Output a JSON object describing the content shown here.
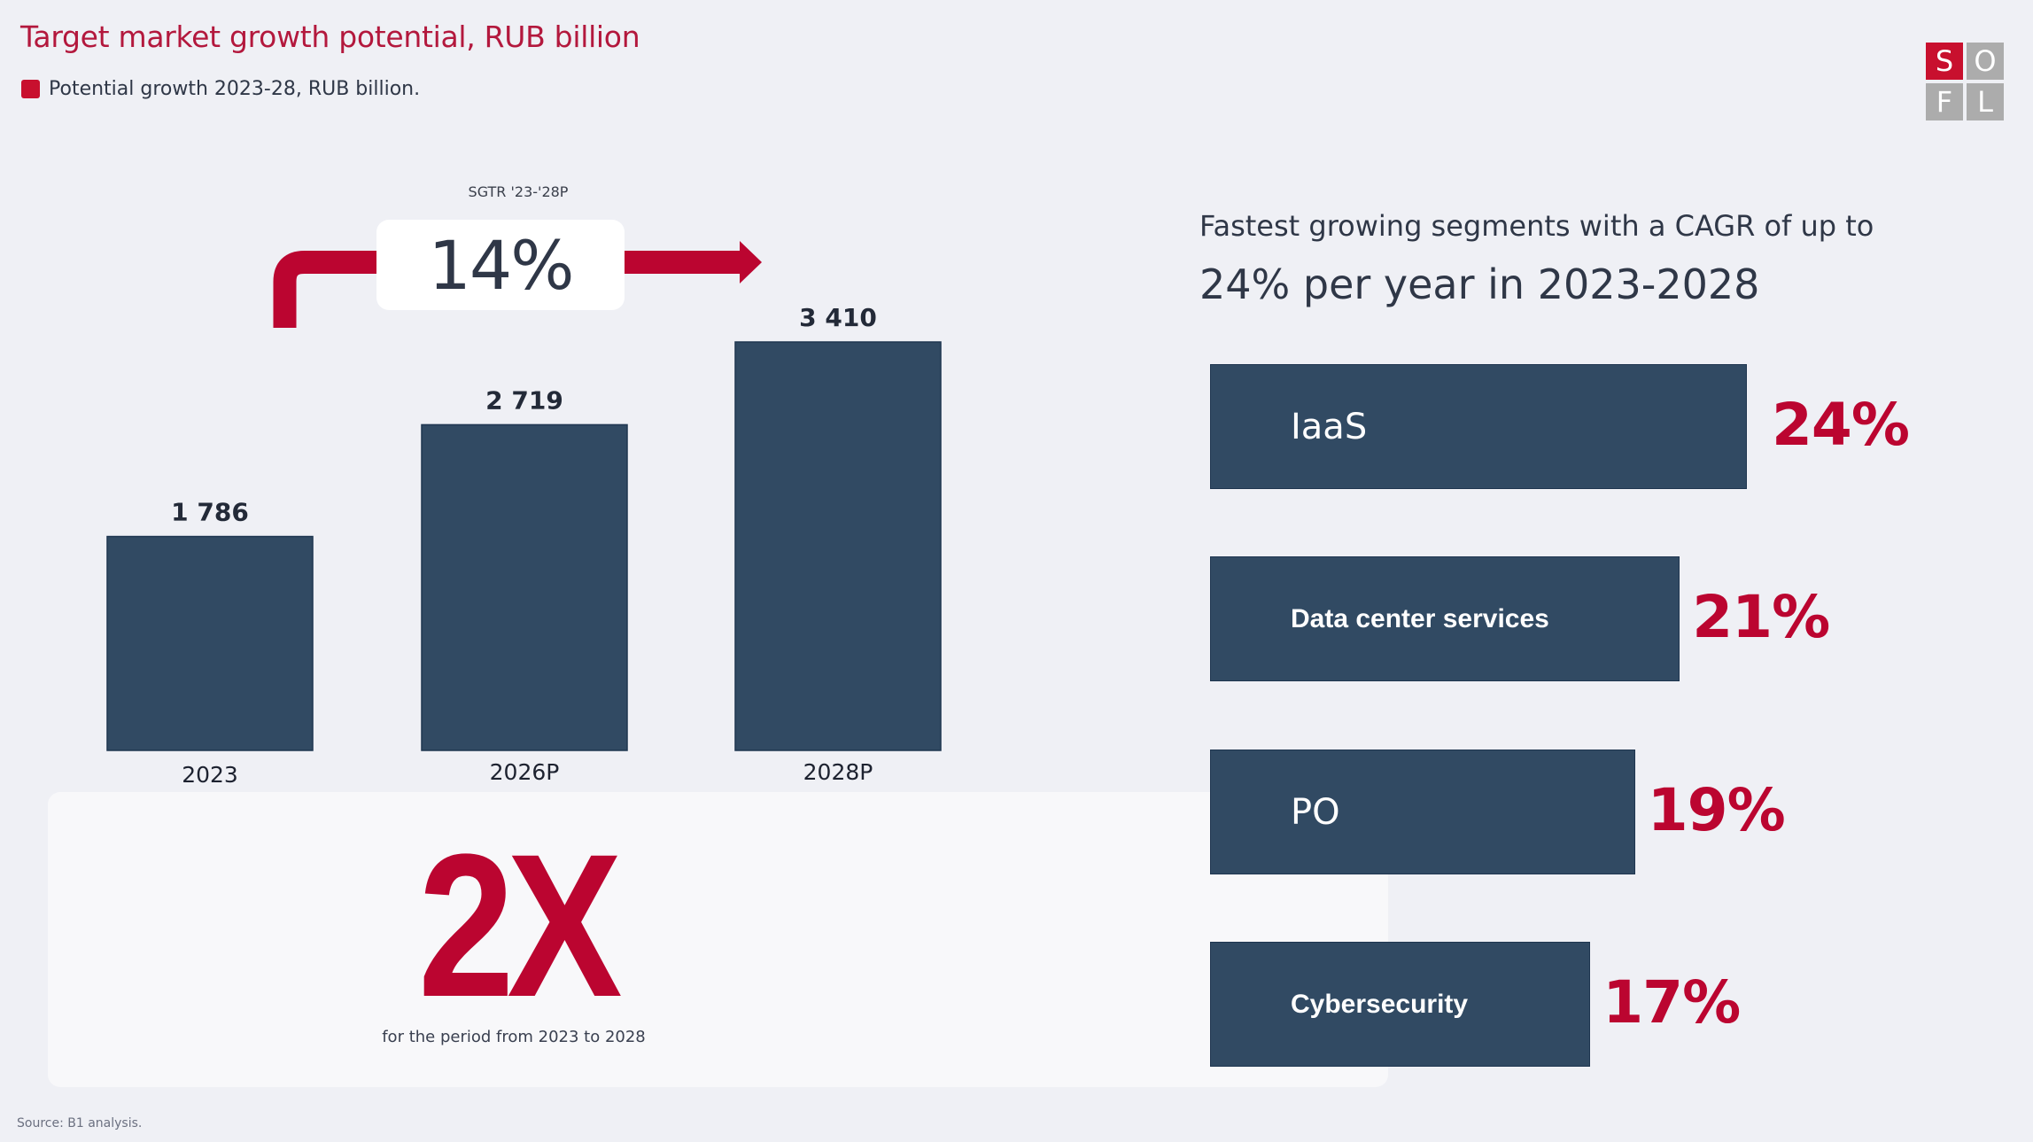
{
  "header": {
    "title": "Target market growth potential, RUB billion",
    "legend_label": "Potential growth 2023-28, RUB billion."
  },
  "logo": {
    "letters": [
      "S",
      "O",
      "F",
      "L"
    ]
  },
  "colors": {
    "accent": "#c8102e",
    "accent_text": "#bb0530",
    "bar": "#314a63",
    "text": "#2f3747",
    "background": "#eff0f5",
    "logo_gray": "#acacac"
  },
  "growth_annotation": {
    "label": "SGTR '23-'28P",
    "value": "14%"
  },
  "multiplier": {
    "value": "2X",
    "caption": "for the period from 2023 to 2028"
  },
  "source": "Source: B1 analysis.",
  "segments_heading": {
    "line1": "Fastest growing segments with a CAGR of up to",
    "line2": "24% per year in 2023-2028"
  },
  "chart_data": [
    {
      "type": "bar",
      "title": "Target market growth potential, RUB billion",
      "legend": [
        "Potential growth 2023-28, RUB billion."
      ],
      "categories": [
        "2023",
        "2026P",
        "2028P"
      ],
      "values": [
        1786,
        2719,
        3410
      ],
      "value_labels": [
        "1 786",
        "2 719",
        "3 410"
      ],
      "xlabel": "",
      "ylabel": "",
      "ylim": [
        0,
        3410
      ],
      "grid": false,
      "annotation": {
        "label": "SGTR '23-'28P",
        "value": "14%"
      }
    },
    {
      "type": "bar",
      "orientation": "horizontal",
      "title": "Fastest growing segments with a CAGR of up to 24% per year in 2023-2028",
      "categories": [
        "IaaS",
        "Data center services",
        "PO",
        "Cybersecurity"
      ],
      "values": [
        24,
        21,
        19,
        17
      ],
      "value_labels": [
        "24%",
        "21%",
        "19%",
        "17%"
      ],
      "label_styles": [
        "light",
        "bold",
        "light",
        "bold"
      ],
      "unit": "%",
      "xlim": [
        0,
        24
      ],
      "grid": false
    }
  ]
}
